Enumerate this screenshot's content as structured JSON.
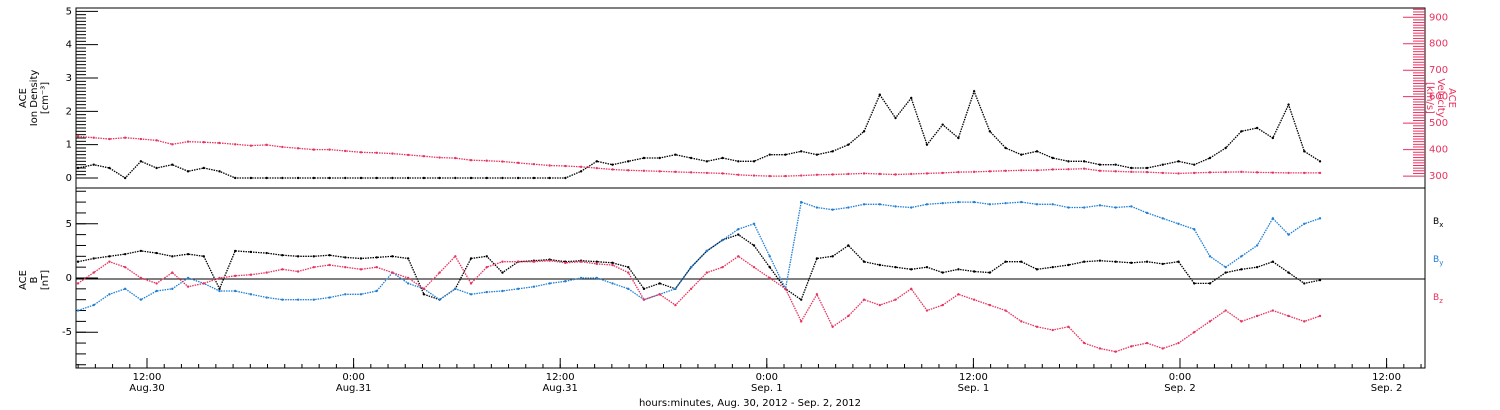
{
  "colors": {
    "black": "#000000",
    "pink": "#e8325e",
    "blue": "#1f7fd6"
  },
  "chart_data": [
    {
      "type": "scatter",
      "panel": "solar wind plasma",
      "ylabel_lines": [
        "ACE",
        "Ion Density",
        "[cm⁻³]"
      ],
      "ylim": [
        -0.3,
        5.1
      ],
      "ytick_labels": [
        "0",
        "1",
        "2",
        "3",
        "4",
        "5"
      ],
      "y2label_lines": [
        "ACE",
        "Velocity",
        "[km/s]"
      ],
      "y2lim": [
        255,
        935
      ],
      "y2tick_labels": [
        "300",
        "400",
        "500",
        "600",
        "700",
        "800",
        "900"
      ],
      "series": [
        {
          "color": "#000000",
          "axis": "left",
          "x": [
            0,
            1,
            2,
            3,
            4,
            5,
            6,
            7,
            8,
            9,
            10,
            11,
            12,
            13,
            14,
            15,
            16,
            17,
            18,
            19,
            20,
            21,
            22,
            23,
            24,
            25,
            26,
            27,
            28,
            29,
            30,
            31,
            32,
            33,
            34,
            35,
            36,
            37,
            38,
            39,
            40,
            41,
            42,
            43,
            44,
            45,
            46,
            47,
            48,
            49,
            50,
            51,
            52,
            53,
            54,
            55,
            56,
            57,
            58,
            59,
            60,
            61,
            62,
            63,
            64,
            65,
            66,
            67,
            68,
            69,
            70,
            71,
            72,
            73,
            74,
            75,
            76,
            77,
            78,
            79
          ],
          "y": [
            0.3,
            0.4,
            0.3,
            0.0,
            0.5,
            0.3,
            0.4,
            0.2,
            0.3,
            0.2,
            0.0,
            0.0,
            0.0,
            0.0,
            0.0,
            0.0,
            0.0,
            0.0,
            0.0,
            0.0,
            0.0,
            0.0,
            0.0,
            0.0,
            0.0,
            0.0,
            0.0,
            0.0,
            0.0,
            0.0,
            0.0,
            0.0,
            0.2,
            0.5,
            0.4,
            0.5,
            0.6,
            0.6,
            0.7,
            0.6,
            0.5,
            0.6,
            0.5,
            0.5,
            0.7,
            0.7,
            0.8,
            0.7,
            0.8,
            1.0,
            1.4,
            2.5,
            1.8,
            2.4,
            1.0,
            1.6,
            1.2,
            2.6,
            1.4,
            0.9,
            0.7,
            0.8,
            0.6,
            0.5,
            0.5,
            0.4,
            0.4,
            0.3,
            0.3,
            0.4,
            0.5,
            0.4,
            0.6,
            0.9,
            1.4,
            1.5,
            1.2,
            2.2,
            0.8,
            0.5
          ]
        },
        {
          "color": "#e8325e",
          "axis": "right",
          "x": [
            0,
            1,
            2,
            3,
            4,
            5,
            6,
            7,
            8,
            9,
            10,
            11,
            12,
            13,
            14,
            15,
            16,
            17,
            18,
            19,
            20,
            21,
            22,
            23,
            24,
            25,
            26,
            27,
            28,
            29,
            30,
            31,
            32,
            33,
            34,
            35,
            36,
            37,
            38,
            39,
            40,
            41,
            42,
            43,
            44,
            45,
            46,
            47,
            48,
            49,
            50,
            51,
            52,
            53,
            54,
            55,
            56,
            57,
            58,
            59,
            60,
            61,
            62,
            63,
            64,
            65,
            66,
            67,
            68,
            69,
            70,
            71,
            72,
            73,
            74,
            75,
            76,
            77,
            78,
            79
          ],
          "y": [
            450,
            445,
            440,
            445,
            440,
            435,
            420,
            430,
            428,
            425,
            420,
            415,
            418,
            410,
            405,
            400,
            400,
            395,
            390,
            388,
            385,
            380,
            375,
            370,
            368,
            360,
            358,
            355,
            350,
            345,
            340,
            338,
            335,
            330,
            325,
            322,
            320,
            318,
            316,
            314,
            312,
            310,
            305,
            302,
            300,
            300,
            302,
            305,
            306,
            308,
            310,
            308,
            306,
            308,
            310,
            312,
            315,
            316,
            318,
            320,
            322,
            322,
            325,
            326,
            328,
            320,
            318,
            316,
            315,
            312,
            310,
            312,
            314,
            315,
            316,
            314,
            313,
            312,
            312,
            312
          ]
        }
      ]
    },
    {
      "type": "scatter",
      "panel": "magnetic field",
      "ylabel_lines": [
        "ACE",
        "B",
        "[nT]"
      ],
      "ylim": [
        -8.3,
        8.3
      ],
      "ytick_labels": [
        "-5",
        "0",
        "5"
      ],
      "legend_position": "right",
      "series": [
        {
          "name": "Bx",
          "name_main": "B",
          "name_sub": "x",
          "color": "#000000",
          "x": [
            0,
            1,
            2,
            3,
            4,
            5,
            6,
            7,
            8,
            9,
            10,
            11,
            12,
            13,
            14,
            15,
            16,
            17,
            18,
            19,
            20,
            21,
            22,
            23,
            24,
            25,
            26,
            27,
            28,
            29,
            30,
            31,
            32,
            33,
            34,
            35,
            36,
            37,
            38,
            39,
            40,
            41,
            42,
            43,
            44,
            45,
            46,
            47,
            48,
            49,
            50,
            51,
            52,
            53,
            54,
            55,
            56,
            57,
            58,
            59,
            60,
            61,
            62,
            63,
            64,
            65,
            66,
            67,
            68,
            69,
            70,
            71,
            72,
            73,
            74,
            75,
            76,
            77,
            78,
            79
          ],
          "y": [
            1.5,
            1.8,
            2.0,
            2.2,
            2.5,
            2.3,
            2.0,
            2.2,
            2.0,
            -1.0,
            2.5,
            2.4,
            2.3,
            2.1,
            2.0,
            2.0,
            2.1,
            1.9,
            1.8,
            1.9,
            2.0,
            1.8,
            -1.5,
            -2.0,
            -1.0,
            1.8,
            2.0,
            0.5,
            1.5,
            1.6,
            1.7,
            1.5,
            1.6,
            1.5,
            1.4,
            1.0,
            -1.0,
            -0.5,
            -1.0,
            1.0,
            2.5,
            3.5,
            4.0,
            3.0,
            1.0,
            -1.0,
            -2.0,
            1.8,
            2.0,
            3.0,
            1.5,
            1.2,
            1.0,
            0.8,
            1.0,
            0.5,
            0.8,
            0.6,
            0.5,
            1.5,
            1.5,
            0.8,
            1.0,
            1.2,
            1.5,
            1.6,
            1.5,
            1.4,
            1.5,
            1.3,
            1.5,
            -0.5,
            -0.5,
            0.5,
            0.8,
            1.0,
            1.5,
            0.5,
            -0.5,
            -0.2
          ]
        },
        {
          "name": "By",
          "name_main": "B",
          "name_sub": "y",
          "color": "#1f7fd6",
          "x": [
            0,
            1,
            2,
            3,
            4,
            5,
            6,
            7,
            8,
            9,
            10,
            11,
            12,
            13,
            14,
            15,
            16,
            17,
            18,
            19,
            20,
            21,
            22,
            23,
            24,
            25,
            26,
            27,
            28,
            29,
            30,
            31,
            32,
            33,
            34,
            35,
            36,
            37,
            38,
            39,
            40,
            41,
            42,
            43,
            44,
            45,
            46,
            47,
            48,
            49,
            50,
            51,
            52,
            53,
            54,
            55,
            56,
            57,
            58,
            59,
            60,
            61,
            62,
            63,
            64,
            65,
            66,
            67,
            68,
            69,
            70,
            71,
            72,
            73,
            74,
            75,
            76,
            77,
            78,
            79
          ],
          "y": [
            -3.0,
            -2.5,
            -1.5,
            -1.0,
            -2.0,
            -1.2,
            -1.0,
            0.0,
            -0.5,
            -1.2,
            -1.2,
            -1.5,
            -1.8,
            -2.0,
            -2.0,
            -2.0,
            -1.8,
            -1.5,
            -1.5,
            -1.2,
            0.5,
            -0.5,
            -1.0,
            -2.0,
            -1.0,
            -1.5,
            -1.3,
            -1.2,
            -1.0,
            -0.8,
            -0.5,
            -0.3,
            0.0,
            0.0,
            -0.5,
            -1.0,
            -2.0,
            -1.5,
            -1.0,
            1.0,
            2.5,
            3.5,
            4.5,
            5.0,
            2.0,
            -1.0,
            7.0,
            6.5,
            6.3,
            6.5,
            6.8,
            6.8,
            6.6,
            6.5,
            6.8,
            6.9,
            7.0,
            7.0,
            6.8,
            6.9,
            7.0,
            6.8,
            6.8,
            6.5,
            6.5,
            6.7,
            6.5,
            6.6,
            6.0,
            5.5,
            5.0,
            4.5,
            2.0,
            1.0,
            2.0,
            3.0,
            5.5,
            4.0,
            5.0,
            5.5
          ]
        },
        {
          "name": "Bz",
          "name_main": "B",
          "name_sub": "z",
          "color": "#e8325e",
          "x": [
            0,
            1,
            2,
            3,
            4,
            5,
            6,
            7,
            8,
            9,
            10,
            11,
            12,
            13,
            14,
            15,
            16,
            17,
            18,
            19,
            20,
            21,
            22,
            23,
            24,
            25,
            26,
            27,
            28,
            29,
            30,
            31,
            32,
            33,
            34,
            35,
            36,
            37,
            38,
            39,
            40,
            41,
            42,
            43,
            44,
            45,
            46,
            47,
            48,
            49,
            50,
            51,
            52,
            53,
            54,
            55,
            56,
            57,
            58,
            59,
            60,
            61,
            62,
            63,
            64,
            65,
            66,
            67,
            68,
            69,
            70,
            71,
            72,
            73,
            74,
            75,
            76,
            77,
            78,
            79
          ],
          "y": [
            -0.5,
            0.5,
            1.5,
            1.0,
            0.0,
            -0.5,
            0.5,
            -0.8,
            -0.5,
            0.0,
            0.2,
            0.3,
            0.5,
            0.8,
            0.6,
            1.0,
            1.2,
            1.0,
            0.8,
            1.0,
            0.5,
            0.0,
            -1.0,
            0.5,
            2.0,
            -0.5,
            1.0,
            1.5,
            1.5,
            1.5,
            1.6,
            1.4,
            1.5,
            1.3,
            1.2,
            0.5,
            -2.0,
            -1.5,
            -2.5,
            -1.0,
            0.5,
            1.0,
            2.0,
            1.0,
            0.0,
            -1.0,
            -4.0,
            -1.5,
            -4.5,
            -3.5,
            -2.0,
            -2.5,
            -2.0,
            -1.0,
            -3.0,
            -2.5,
            -1.5,
            -2.0,
            -2.5,
            -3.0,
            -4.0,
            -4.5,
            -4.8,
            -4.5,
            -6.0,
            -6.5,
            -6.8,
            -6.3,
            -6.0,
            -6.5,
            -6.0,
            -5.0,
            -4.0,
            -3.0,
            -4.0,
            -3.5,
            -3.0,
            -3.5,
            -4.0,
            -3.5
          ]
        }
      ]
    }
  ],
  "time_axis": {
    "labels": [
      {
        "time": "12:00",
        "date": "Aug.30"
      },
      {
        "time": "0:00",
        "date": "Aug.31"
      },
      {
        "time": "12:00",
        "date": "Aug.31"
      },
      {
        "time": "0:00",
        "date": "Sep. 1"
      },
      {
        "time": "12:00",
        "date": "Sep. 1"
      },
      {
        "time": "0:00",
        "date": "Sep. 2"
      },
      {
        "time": "12:00",
        "date": "Sep. 2"
      }
    ],
    "caption": "hours:minutes, Aug. 30, 2012 - Sep.  2, 2012"
  }
}
